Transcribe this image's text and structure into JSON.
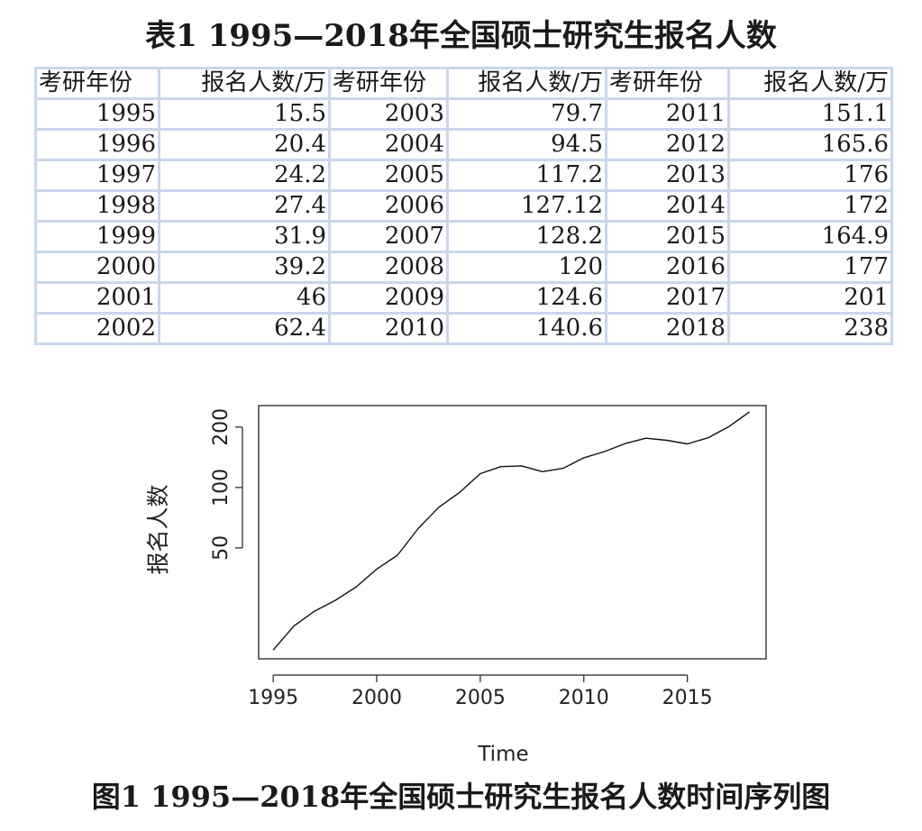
{
  "table": {
    "title": "表1  1995—2018年全国硕士研究生报名人数",
    "headers": [
      "考研年份",
      "报名人数/万",
      "考研年份",
      "报名人数/万",
      "考研年份",
      "报名人数/万"
    ],
    "rows": [
      [
        "1995",
        "15.5",
        "2003",
        "79.7",
        "2011",
        "151.1"
      ],
      [
        "1996",
        "20.4",
        "2004",
        "94.5",
        "2012",
        "165.6"
      ],
      [
        "1997",
        "24.2",
        "2005",
        "117.2",
        "2013",
        "176"
      ],
      [
        "1998",
        "27.4",
        "2006",
        "127.12",
        "2014",
        "172"
      ],
      [
        "1999",
        "31.9",
        "2007",
        "128.2",
        "2015",
        "164.9"
      ],
      [
        "2000",
        "39.2",
        "2008",
        "120",
        "2016",
        "177"
      ],
      [
        "2001",
        "46",
        "2009",
        "124.6",
        "2017",
        "201"
      ],
      [
        "2002",
        "62.4",
        "2010",
        "140.6",
        "2018",
        "238"
      ]
    ]
  },
  "chart_data": {
    "type": "line",
    "title": "",
    "xlabel": "Time",
    "ylabel": "报名人数",
    "y_scale": "log",
    "x_ticks": [
      1995,
      2000,
      2005,
      2010,
      2015
    ],
    "y_ticks": [
      50,
      100,
      200
    ],
    "xlim": [
      1994.3,
      2018.8
    ],
    "ylim": [
      14.0,
      256
    ],
    "grid": false,
    "legend": "none",
    "x": [
      1995,
      1996,
      1997,
      1998,
      1999,
      2000,
      2001,
      2002,
      2003,
      2004,
      2005,
      2006,
      2007,
      2008,
      2009,
      2010,
      2011,
      2012,
      2013,
      2014,
      2015,
      2016,
      2017,
      2018
    ],
    "values": [
      15.5,
      20.4,
      24.2,
      27.4,
      31.9,
      39.2,
      46,
      62.4,
      79.7,
      94.5,
      117.2,
      127.12,
      128.2,
      120,
      124.6,
      140.6,
      151.1,
      165.6,
      176,
      172,
      164.9,
      177,
      201,
      238
    ]
  },
  "figure_caption": "图1  1995—2018年全国硕士研究生报名人数时间序列图"
}
